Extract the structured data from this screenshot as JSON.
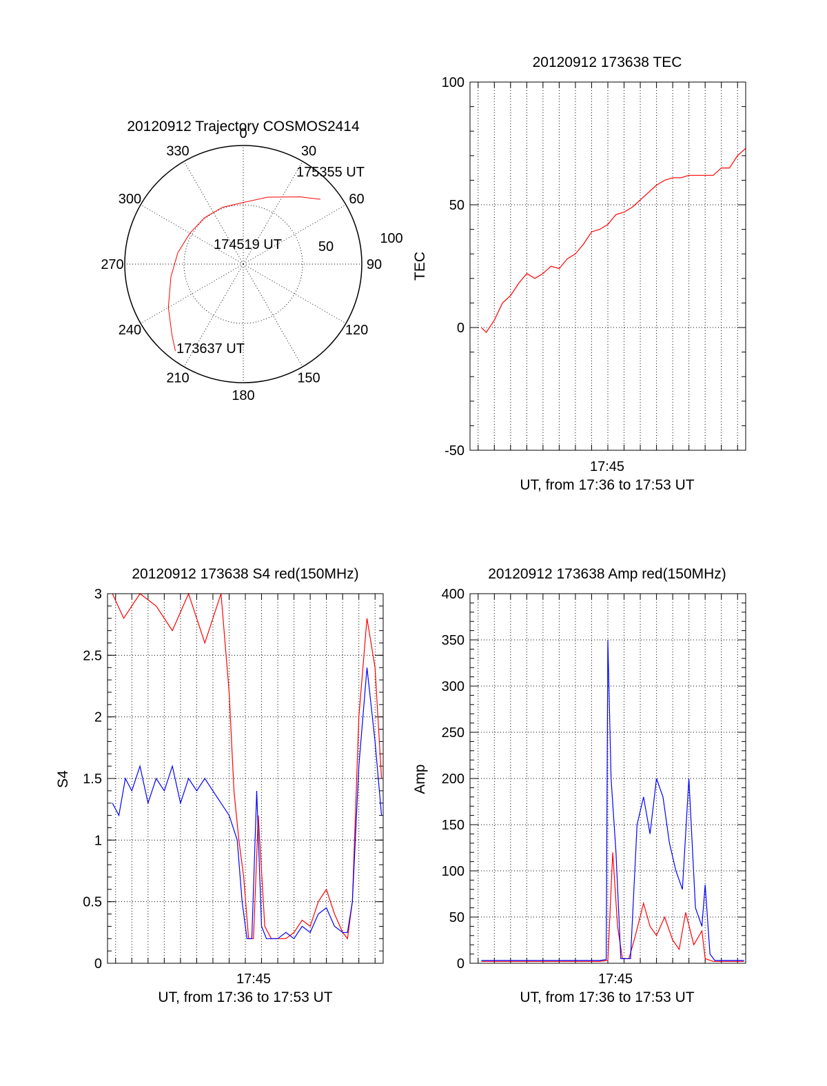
{
  "colors": {
    "red": "#ff0000",
    "blue": "#0000ff",
    "black": "#000000"
  },
  "chart_data": [
    {
      "id": "polar",
      "type": "scatter",
      "title": "20120912 Trajectory COSMOS2414",
      "azimuth_labels": [
        "0",
        "30",
        "60",
        "90",
        "120",
        "150",
        "180",
        "210",
        "240",
        "270",
        "300",
        "330"
      ],
      "ring_labels": [
        "50",
        "100"
      ],
      "start_label": "173637 UT",
      "mid_label": "174519 UT",
      "end_label": "175355 UT",
      "track": {
        "azimuth": [
          218,
          225,
          240,
          260,
          280,
          300,
          320,
          340,
          0,
          20,
          40,
          50
        ],
        "zenith": [
          93,
          85,
          73,
          62,
          56,
          52,
          51,
          51,
          52,
          60,
          74,
          85
        ]
      }
    },
    {
      "id": "tec",
      "type": "line",
      "title": "20120912 173638 TEC",
      "ylabel": "TEC",
      "xlabel": "UT, from 17:36 to 17:53 UT",
      "xtick_label": "17:45",
      "yticks": [
        "100",
        "50",
        "0",
        "-50"
      ],
      "ylim": [
        -50,
        100
      ],
      "xlim_min": [
        36.5,
        53.5
      ],
      "series": [
        {
          "color": "red",
          "x": [
            37.2,
            37.5,
            38.0,
            38.5,
            39.0,
            39.5,
            40.0,
            40.5,
            41.0,
            41.5,
            42.0,
            42.5,
            43.0,
            43.5,
            44.0,
            44.5,
            45.0,
            45.5,
            46.0,
            46.5,
            47.0,
            47.5,
            48.0,
            48.5,
            49.0,
            49.5,
            50.0,
            50.5,
            51.0,
            51.5,
            52.0,
            52.5,
            52.8,
            53.0,
            53.5
          ],
          "y": [
            0,
            -2,
            3,
            10,
            13,
            18,
            22,
            20,
            22,
            25,
            24,
            28,
            30,
            34,
            39,
            40,
            42,
            46,
            47,
            49,
            52,
            55,
            58,
            60,
            61,
            61,
            62,
            62,
            62,
            62,
            65,
            65,
            68,
            70,
            73
          ]
        }
      ]
    },
    {
      "id": "s4",
      "type": "line",
      "title": "20120912 173638 S4 red(150MHz)",
      "ylabel": "S4",
      "xlabel": "UT, from 17:36 to 17:53 UT",
      "xtick_label": "17:45",
      "yticks": [
        "3",
        "2.5",
        "2",
        "1.5",
        "1",
        "0.5",
        "0"
      ],
      "ylim": [
        0,
        3
      ],
      "xlim_min": [
        36.5,
        53.5
      ],
      "series": [
        {
          "color": "red",
          "x": [
            36.8,
            37.5,
            38.5,
            39.5,
            40.5,
            41.5,
            42.5,
            43.5,
            44.0,
            44.3,
            44.6,
            44.9,
            45.2,
            45.5,
            45.8,
            46.2,
            46.6,
            47.0,
            47.5,
            48.0,
            48.5,
            49.0,
            49.5,
            50.0,
            50.5,
            51.0,
            51.3,
            51.6,
            52.0,
            52.5,
            53.0,
            53.4
          ],
          "y": [
            3.0,
            2.8,
            3.0,
            2.9,
            2.7,
            3.0,
            2.6,
            3.0,
            2.2,
            1.4,
            1.0,
            0.7,
            0.2,
            0.2,
            1.2,
            0.3,
            0.2,
            0.2,
            0.2,
            0.25,
            0.35,
            0.3,
            0.5,
            0.6,
            0.4,
            0.25,
            0.2,
            0.5,
            2.0,
            2.8,
            2.4,
            1.5
          ]
        },
        {
          "color": "blue",
          "x": [
            36.8,
            37.2,
            37.6,
            38.0,
            38.5,
            39.0,
            39.5,
            40.0,
            40.5,
            41.0,
            41.5,
            42.0,
            42.5,
            43.0,
            43.5,
            44.0,
            44.5,
            44.8,
            45.1,
            45.4,
            45.7,
            46.0,
            46.3,
            46.7,
            47.0,
            47.5,
            48.0,
            48.5,
            49.0,
            49.5,
            50.0,
            50.5,
            51.0,
            51.3,
            51.6,
            52.0,
            52.5,
            53.0,
            53.4
          ],
          "y": [
            1.3,
            1.2,
            1.5,
            1.4,
            1.6,
            1.3,
            1.5,
            1.4,
            1.6,
            1.3,
            1.5,
            1.4,
            1.5,
            1.4,
            1.3,
            1.2,
            1.0,
            0.5,
            0.2,
            0.2,
            1.4,
            0.3,
            0.2,
            0.2,
            0.2,
            0.25,
            0.2,
            0.3,
            0.25,
            0.4,
            0.45,
            0.3,
            0.25,
            0.25,
            0.5,
            1.6,
            2.4,
            1.8,
            1.2
          ]
        }
      ]
    },
    {
      "id": "amp",
      "type": "line",
      "title": "20120912 173638 Amp red(150MHz)",
      "ylabel": "Amp",
      "xlabel": "UT, from 17:36 to 17:53 UT",
      "xtick_label": "17:45",
      "yticks": [
        "400",
        "350",
        "300",
        "250",
        "200",
        "150",
        "100",
        "50",
        "0"
      ],
      "ylim": [
        0,
        400
      ],
      "xlim_min": [
        36.5,
        53.5
      ],
      "series": [
        {
          "color": "red",
          "x": [
            37.2,
            40.0,
            43.0,
            44.5,
            45.0,
            45.3,
            45.6,
            45.9,
            46.3,
            46.7,
            47.2,
            47.6,
            48.0,
            48.5,
            49.0,
            49.4,
            49.8,
            50.3,
            50.8,
            51.0,
            51.5,
            53.4
          ],
          "y": [
            2,
            2,
            2,
            2,
            3,
            120,
            40,
            5,
            5,
            30,
            65,
            40,
            30,
            50,
            25,
            15,
            55,
            20,
            35,
            5,
            2,
            2
          ]
        },
        {
          "color": "blue",
          "x": [
            37.2,
            40.0,
            43.0,
            44.5,
            44.9,
            45.0,
            45.2,
            45.5,
            45.8,
            46.0,
            46.4,
            46.8,
            47.2,
            47.6,
            48.0,
            48.4,
            48.8,
            49.2,
            49.6,
            50.0,
            50.4,
            50.8,
            51.0,
            51.3,
            51.6,
            52.0,
            53.4
          ],
          "y": [
            3,
            3,
            3,
            3,
            4,
            350,
            200,
            120,
            5,
            5,
            5,
            150,
            180,
            140,
            200,
            180,
            130,
            100,
            80,
            200,
            60,
            40,
            85,
            10,
            3,
            3,
            3
          ]
        }
      ]
    }
  ]
}
